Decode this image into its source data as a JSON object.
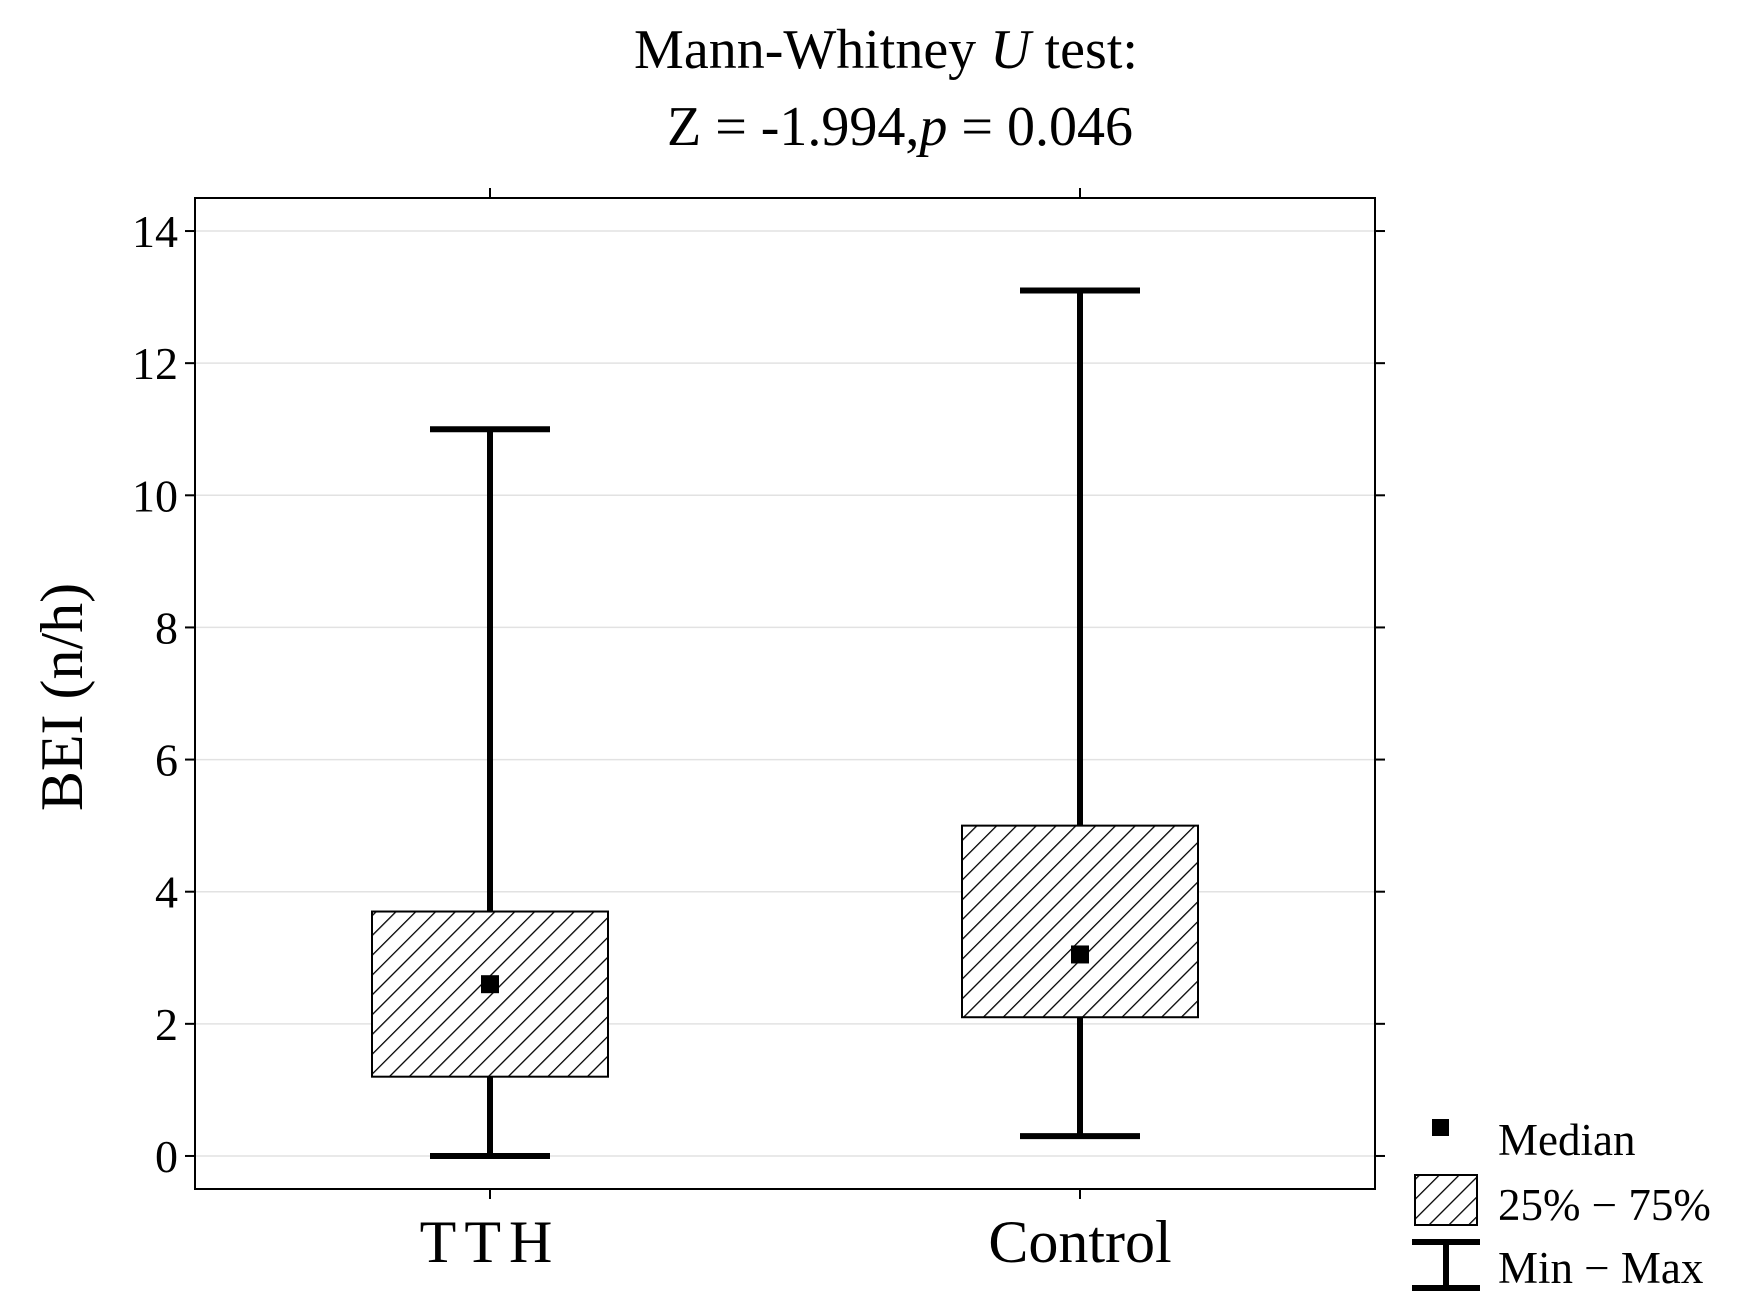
{
  "chart_data": {
    "type": "boxplot",
    "title_line1_pre": "Mann-Whitney ",
    "title_line1_italic": "U",
    "title_line1_post": " test:",
    "title_line2_pre": "Z = -1.994,",
    "title_line2_italic": "p",
    "title_line2_post": " = 0.046",
    "ylabel": "BEI (n/h)",
    "xlabel": "",
    "ylim": [
      -0.5,
      14.5
    ],
    "yticks": [
      0,
      2,
      4,
      6,
      8,
      10,
      12,
      14
    ],
    "grid": true,
    "categories": [
      "TTH",
      "Control"
    ],
    "series": [
      {
        "name": "TTH",
        "min": 0,
        "q1": 1.2,
        "median": 2.6,
        "q3": 3.7,
        "max": 11
      },
      {
        "name": "Control",
        "min": 0.3,
        "q1": 2.1,
        "median": 3.05,
        "q3": 5.0,
        "max": 13.1
      }
    ],
    "legend": {
      "position": "bottom-right",
      "items": [
        {
          "symbol": "square",
          "label": "Median"
        },
        {
          "symbol": "hatched-box",
          "label": "25% − 75%"
        },
        {
          "symbol": "whisker",
          "label": "Min − Max"
        }
      ]
    }
  }
}
